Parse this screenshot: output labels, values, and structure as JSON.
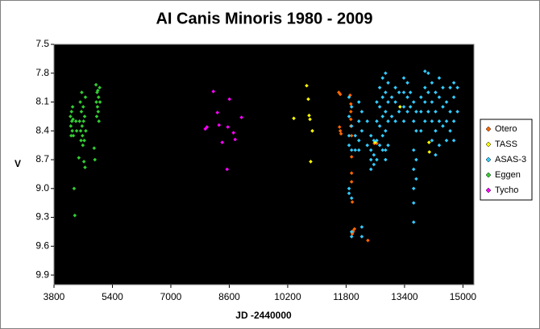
{
  "chart_data": {
    "type": "scatter",
    "title": "AI Canis Minoris 1980 - 2009",
    "x_label": "JD -2440000",
    "y_label": "V",
    "xlim": [
      3800,
      15300
    ],
    "xticks": [
      3800,
      5400,
      7000,
      8600,
      10200,
      11800,
      13400,
      15000
    ],
    "ylim": [
      7.5,
      10.0
    ],
    "y_reversed": true,
    "yticks": [
      7.5,
      7.8,
      8.1,
      8.4,
      8.7,
      {
        "value": 9,
        "label": "9.0"
      },
      9.3,
      9.6,
      9.9
    ],
    "legend": "right",
    "series": [
      {
        "name": "Otero",
        "color": "#ff6600",
        "x": [
          11600,
          11640,
          11620,
          11640,
          11660,
          11910,
          11930,
          11930,
          11930,
          11930,
          11950,
          11950,
          11950,
          11950,
          11970,
          11990,
          11970,
          11990,
          12030,
          12396,
          12572,
          12640
        ],
        "values": [
          8.0,
          8.02,
          8.36,
          8.4,
          8.43,
          8.03,
          8.12,
          8.2,
          8.28,
          8.35,
          8.45,
          8.67,
          8.84,
          8.93,
          9.14,
          9.44,
          9.47,
          9.45,
          9.42,
          9.54,
          8.53,
          8.53
        ]
      },
      {
        "name": "TASS",
        "color": "#ffff00",
        "x": [
          10368,
          10720,
          10764,
          10786,
          10810,
          10875,
          10830,
          12594,
          13277,
          14070,
          14080
        ],
        "values": [
          8.27,
          7.93,
          8.07,
          8.24,
          8.28,
          8.4,
          8.72,
          8.52,
          8.15,
          8.52,
          8.62
        ]
      },
      {
        "name": "ASAS-3",
        "color": "#33ccff",
        "x": [
          11880,
          11880,
          11880,
          11880,
          11880,
          11880,
          11950,
          11950,
          11950,
          11950,
          11950,
          11950,
          12050,
          12050,
          12150,
          12150,
          12150,
          12150,
          12230,
          12230,
          12230,
          12230,
          12380,
          12380,
          12480,
          12480,
          12480,
          12480,
          12560,
          12560,
          12560,
          12640,
          12640,
          12640,
          12640,
          12720,
          12720,
          12720,
          12720,
          12800,
          12800,
          12800,
          12800,
          12800,
          12880,
          12880,
          12880,
          12880,
          12880,
          12880,
          12950,
          12950,
          12950,
          12950,
          13050,
          13050,
          13150,
          13150,
          13150,
          13250,
          13250,
          13380,
          13380,
          13380,
          13380,
          13480,
          13480,
          13480,
          13560,
          13560,
          13650,
          13650,
          13650,
          13650,
          13650,
          13650,
          13650,
          13720,
          13720,
          13720,
          13720,
          13850,
          13850,
          13850,
          13960,
          13960,
          13960,
          13960,
          14050,
          14050,
          14050,
          14150,
          14150,
          14150,
          14150,
          14250,
          14250,
          14250,
          14250,
          14350,
          14350,
          14350,
          14350,
          14450,
          14450,
          14450,
          14550,
          14550,
          14550,
          14650,
          14650,
          14650,
          14750,
          14750,
          14750,
          14750,
          14850,
          14850
        ],
        "values": [
          8.05,
          8.25,
          8.45,
          8.55,
          9.0,
          9.05,
          8.15,
          8.35,
          8.6,
          9.1,
          9.45,
          9.5,
          8.45,
          8.6,
          8.1,
          8.3,
          8.5,
          8.6,
          8.2,
          8.4,
          9.4,
          9.5,
          8.3,
          8.55,
          8.45,
          8.6,
          8.7,
          8.8,
          8.5,
          8.65,
          8.75,
          8.1,
          8.3,
          8.5,
          8.7,
          7.95,
          8.15,
          8.35,
          8.55,
          7.85,
          8.05,
          8.25,
          8.45,
          8.6,
          7.8,
          8.0,
          8.2,
          8.4,
          8.6,
          8.7,
          7.9,
          8.1,
          8.3,
          8.55,
          8.05,
          8.25,
          7.95,
          8.1,
          8.3,
          8.0,
          8.2,
          7.85,
          8.0,
          8.15,
          8.3,
          7.9,
          8.05,
          8.2,
          8.0,
          8.15,
          8.1,
          8.3,
          8.6,
          8.8,
          9.0,
          9.15,
          9.35,
          8.2,
          8.4,
          8.7,
          8.9,
          8.05,
          8.2,
          8.4,
          7.78,
          7.95,
          8.1,
          8.3,
          7.8,
          8.0,
          8.2,
          7.9,
          8.1,
          8.3,
          8.5,
          8.0,
          8.2,
          8.4,
          8.65,
          7.85,
          8.05,
          8.3,
          8.55,
          7.95,
          8.15,
          8.35,
          8.1,
          8.3,
          8.5,
          7.95,
          8.2,
          8.4,
          7.9,
          8.05,
          8.3,
          8.5,
          7.95,
          8.2
        ]
      },
      {
        "name": "Eggen",
        "color": "#33cc33",
        "x": [
          4250,
          4260,
          4270,
          4280,
          4290,
          4300,
          4310,
          4320,
          4330,
          4350,
          4370,
          4400,
          4420,
          4480,
          4500,
          4520,
          4530,
          4540,
          4550,
          4560,
          4570,
          4580,
          4590,
          4600,
          4610,
          4620,
          4630,
          4640,
          4650,
          4660,
          4670,
          4900,
          4920,
          4950,
          4960,
          4970,
          4980,
          4990,
          5000,
          5010,
          5020,
          5030,
          5050,
          5060
        ],
        "values": [
          8.25,
          8.35,
          8.45,
          8.2,
          8.3,
          8.4,
          8.15,
          8.28,
          8.45,
          9.0,
          9.28,
          8.3,
          8.4,
          8.68,
          8.3,
          8.1,
          8.4,
          8.5,
          8.2,
          8.0,
          8.35,
          8.45,
          8.55,
          8.15,
          8.3,
          8.72,
          8.5,
          8.25,
          8.78,
          8.05,
          8.4,
          8.58,
          8.7,
          7.92,
          8.1,
          8.25,
          8.0,
          8.15,
          7.98,
          8.2,
          8.05,
          8.3,
          7.95,
          8.1
        ]
      },
      {
        "name": "Tycho",
        "color": "#ff00ff",
        "x": [
          8164,
          7943,
          7990,
          8274,
          8320,
          8406,
          8560,
          8605,
          8540,
          8715,
          8760,
          8935
        ],
        "values": [
          7.99,
          8.38,
          8.36,
          8.21,
          8.34,
          8.52,
          8.36,
          8.07,
          8.8,
          8.42,
          8.49,
          8.26
        ]
      }
    ]
  }
}
